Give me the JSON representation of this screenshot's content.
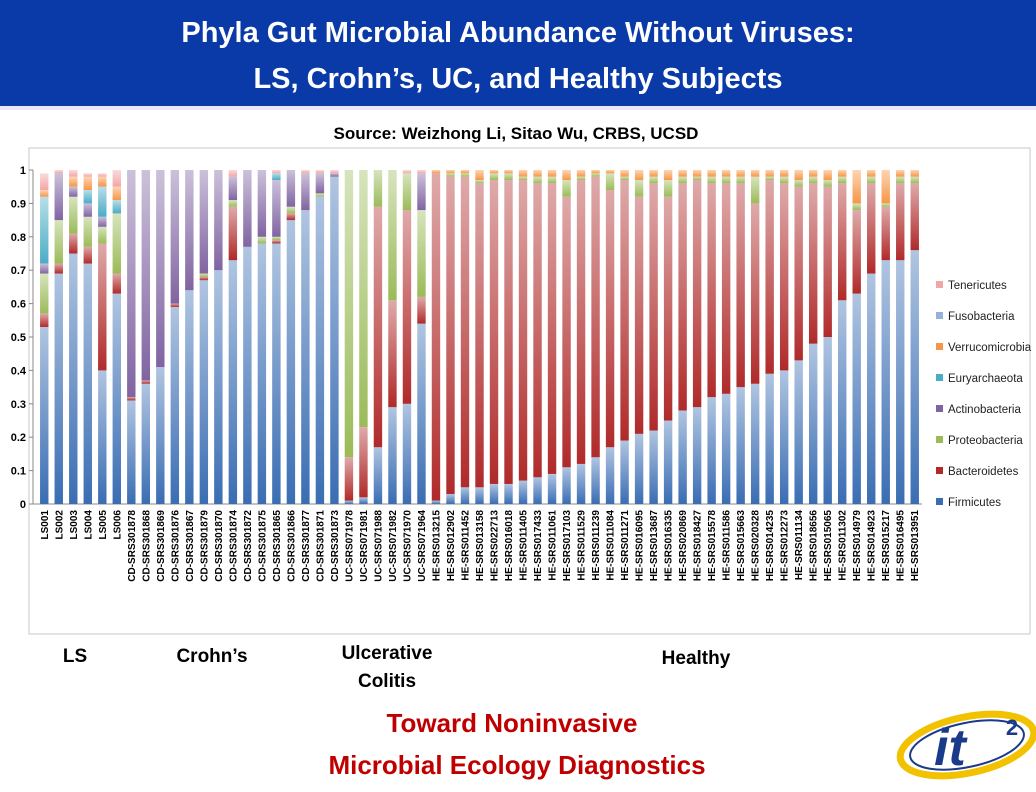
{
  "header": {
    "title": [
      "Phyla Gut Microbial Abundance Without Viruses:",
      "LS, Crohn’s, UC, and Healthy Subjects"
    ]
  },
  "source": "Source: Weizhong Li, Sitao Wu, CRBS, UCSD",
  "chart_data": {
    "type": "stacked_bar",
    "categories": [
      "LS001",
      "LS002",
      "LS003",
      "LS004",
      "LS005",
      "LS006",
      "CD-SRS301878",
      "CD-SRS301868",
      "CD-SRS301869",
      "CD-SRS301876",
      "CD-SRS301867",
      "CD-SRS301879",
      "CD-SRS301870",
      "CD-SRS301874",
      "CD-SRS301872",
      "CD-SRS301875",
      "CD-SRS301865",
      "CD-SRS301866",
      "CD-SRS301877",
      "CD-SRS301871",
      "CD-SRS301873",
      "UC-SRS071978",
      "UC-SRS071981",
      "UC-SRS071988",
      "UC-SRS071982",
      "UC-SRS071970",
      "UC-SRS071964",
      "HE-SRS013215",
      "HE-SRS012902",
      "HE-SRS011452",
      "HE-SRS013158",
      "HE-SRS022713",
      "HE-SRS016018",
      "HE-SRS011405",
      "HE-SRS017433",
      "HE-SRS011061",
      "HE-SRS017103",
      "HE-SRS011529",
      "HE-SRS011239",
      "HE-SRS011084",
      "HE-SRS011271",
      "HE-SRS016095",
      "HE-SRS013687",
      "HE-SRS016335",
      "HE-SRS020869",
      "HE-SRS018427",
      "HE-SRS015578",
      "HE-SRS011586",
      "HE-SRS015663",
      "HE-SRS020328",
      "HE-SRS014235",
      "HE-SRS012273",
      "HE-SRS011134",
      "HE-SRS018656",
      "HE-SRS015065",
      "HE-SRS011302",
      "HE-SRS014979",
      "HE-SRS014923",
      "HE-SRS015217",
      "HE-SRS016495",
      "HE-SRS013951"
    ],
    "series": [
      {
        "name": "Firmicutes",
        "color": "#3a6db3",
        "values": [
          0.53,
          0.69,
          0.75,
          0.72,
          0.4,
          0.63,
          0.31,
          0.36,
          0.41,
          0.59,
          0.64,
          0.67,
          0.7,
          0.73,
          0.77,
          0.78,
          0.78,
          0.85,
          0.88,
          0.92,
          0.98,
          0.01,
          0.02,
          0.17,
          0.29,
          0.3,
          0.54,
          0.01,
          0.03,
          0.05,
          0.05,
          0.06,
          0.06,
          0.07,
          0.08,
          0.09,
          0.11,
          0.12,
          0.14,
          0.17,
          0.19,
          0.21,
          0.22,
          0.25,
          0.28,
          0.29,
          0.32,
          0.33,
          0.35,
          0.36,
          0.39,
          0.4,
          0.43,
          0.48,
          0.5,
          0.61,
          0.63,
          0.69,
          0.73,
          0.73,
          0.76
        ]
      },
      {
        "name": "Bacteroidetes",
        "color": "#b02a2a",
        "values": [
          0.04,
          0.03,
          0.06,
          0.05,
          0.38,
          0.06,
          0.01,
          0.01,
          0,
          0.01,
          0,
          0.01,
          0,
          0.16,
          0,
          0,
          0.01,
          0.02,
          0,
          0,
          0,
          0.13,
          0.21,
          0.72,
          0.32,
          0.58,
          0.08,
          0.98,
          0.95,
          0.93,
          0.91,
          0.91,
          0.91,
          0.9,
          0.88,
          0.87,
          0.81,
          0.85,
          0.84,
          0.77,
          0.78,
          0.71,
          0.74,
          0.67,
          0.68,
          0.68,
          0.64,
          0.63,
          0.61,
          0.54,
          0.58,
          0.56,
          0.52,
          0.48,
          0.45,
          0.35,
          0.25,
          0.27,
          0.16,
          0.23,
          0.2
        ]
      },
      {
        "name": "Proteobacteria",
        "color": "#9bbb59",
        "values": [
          0.12,
          0.13,
          0.11,
          0.09,
          0.05,
          0.18,
          0,
          0,
          0,
          0,
          0,
          0.01,
          0,
          0.02,
          0,
          0.02,
          0.01,
          0.02,
          0,
          0.01,
          0,
          0.86,
          0.77,
          0.11,
          0.39,
          0.11,
          0.26,
          0,
          0.01,
          0.01,
          0.01,
          0.02,
          0.02,
          0.01,
          0.02,
          0.02,
          0.05,
          0.01,
          0.01,
          0.05,
          0.01,
          0.05,
          0.02,
          0.05,
          0.02,
          0.01,
          0.02,
          0.02,
          0.02,
          0.08,
          0.01,
          0.02,
          0.02,
          0.02,
          0.02,
          0.02,
          0.02,
          0.02,
          0.01,
          0.02,
          0.02
        ]
      },
      {
        "name": "Actinobacteria",
        "color": "#8064a2",
        "values": [
          0.03,
          0.14,
          0.03,
          0.04,
          0.03,
          0,
          0.68,
          0.63,
          0.59,
          0.4,
          0.36,
          0.31,
          0.3,
          0.07,
          0.23,
          0.2,
          0.17,
          0.11,
          0.11,
          0.06,
          0.01,
          0,
          0,
          0,
          0,
          0,
          0.11,
          0,
          0,
          0,
          0,
          0,
          0,
          0,
          0,
          0,
          0,
          0,
          0,
          0,
          0,
          0,
          0,
          0,
          0,
          0,
          0,
          0,
          0,
          0,
          0,
          0,
          0,
          0,
          0,
          0,
          0,
          0,
          0,
          0,
          0
        ]
      },
      {
        "name": "Euryarchaeota",
        "color": "#4bacc6",
        "values": [
          0.2,
          0,
          0,
          0.04,
          0.09,
          0.04,
          0,
          0,
          0,
          0,
          0,
          0,
          0,
          0,
          0,
          0,
          0.02,
          0,
          0,
          0,
          0,
          0,
          0,
          0,
          0,
          0,
          0,
          0,
          0,
          0,
          0,
          0,
          0,
          0,
          0,
          0,
          0,
          0,
          0,
          0,
          0,
          0,
          0,
          0,
          0,
          0,
          0,
          0,
          0,
          0,
          0,
          0,
          0,
          0,
          0,
          0,
          0,
          0,
          0,
          0,
          0
        ]
      },
      {
        "name": "Verrucomicrobia",
        "color": "#f79646",
        "values": [
          0.02,
          0,
          0.03,
          0.04,
          0.03,
          0.04,
          0,
          0,
          0,
          0,
          0,
          0,
          0,
          0,
          0,
          0,
          0,
          0,
          0,
          0,
          0,
          0,
          0,
          0,
          0,
          0,
          0,
          0.01,
          0.01,
          0.01,
          0.03,
          0.01,
          0.01,
          0.02,
          0.02,
          0.02,
          0.03,
          0.02,
          0.01,
          0.01,
          0.02,
          0.03,
          0.02,
          0.03,
          0.02,
          0.02,
          0.02,
          0.02,
          0.02,
          0.02,
          0.02,
          0.02,
          0.03,
          0.02,
          0.03,
          0.02,
          0.1,
          0.02,
          0.1,
          0.02,
          0.02
        ]
      },
      {
        "name": "Fusobacteria",
        "color": "#95b3d7",
        "values": [
          0,
          0,
          0,
          0,
          0,
          0,
          0,
          0,
          0,
          0,
          0,
          0,
          0,
          0,
          0,
          0,
          0,
          0,
          0,
          0,
          0,
          0,
          0,
          0,
          0,
          0,
          0,
          0,
          0,
          0,
          0,
          0,
          0,
          0,
          0,
          0,
          0,
          0,
          0,
          0,
          0,
          0,
          0,
          0,
          0,
          0,
          0,
          0,
          0,
          0,
          0,
          0,
          0,
          0,
          0,
          0,
          0,
          0,
          0,
          0,
          0
        ]
      },
      {
        "name": "Tenericutes",
        "color": "#f2a6a6",
        "values": [
          0.05,
          0.01,
          0.02,
          0.01,
          0.01,
          0.05,
          0,
          0,
          0,
          0,
          0,
          0,
          0,
          0.02,
          0,
          0,
          0.01,
          0,
          0.01,
          0.01,
          0.01,
          0,
          0,
          0,
          0,
          0.01,
          0.01,
          0,
          0,
          0,
          0,
          0,
          0,
          0,
          0,
          0,
          0,
          0,
          0,
          0,
          0,
          0,
          0,
          0,
          0,
          0,
          0,
          0,
          0,
          0,
          0,
          0,
          0,
          0,
          0,
          0,
          0,
          0,
          0,
          0,
          0
        ]
      }
    ],
    "ylim": [
      0,
      1
    ],
    "yticks": [
      0,
      0.1,
      0.2,
      0.3,
      0.4,
      0.5,
      0.6,
      0.7,
      0.8,
      0.9,
      1
    ],
    "legend": "right",
    "gradient": true
  },
  "group_labels": [
    [
      "LS"
    ],
    [
      "Crohn’s"
    ],
    [
      "Ulcerative",
      "Colitis"
    ],
    [
      "Healthy"
    ]
  ],
  "footer": [
    "Toward Noninvasive",
    "Microbial Ecology Diagnostics"
  ],
  "logo": {
    "text": "it",
    "superscript": "2"
  }
}
